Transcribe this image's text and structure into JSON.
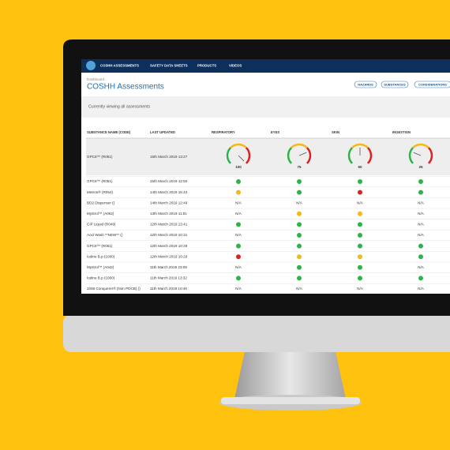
{
  "nav": {
    "items": [
      "COSHH ASSESSMENTS",
      "SAFETY DATA SHEETS",
      "PRODUCTS",
      "VIDEOS"
    ]
  },
  "header": {
    "breadcrumb": "Dashboard",
    "title": "COSHH Assessments",
    "buttons": [
      "HAZARDS",
      "SUBSTANCES",
      "CONSIDERATIONS"
    ]
  },
  "subheading": "Currently viewing all assessments",
  "table": {
    "columns": [
      "SUBSTANCE NAME (CODE)",
      "LAST UPDATED",
      "RESPIRATORY",
      "EYES",
      "SKIN",
      "INGESTION"
    ],
    "gauge_scale": [
      0,
      100
    ],
    "gauge_row": {
      "name": "GPC8™ (R051)",
      "date": "15th March 2019 13:27",
      "values": [
        100,
        75,
        50,
        25
      ]
    },
    "rows": [
      [
        "GPC8™ (R051)",
        "15th March 2019 12:50",
        "#2db34a",
        "#2db34a",
        "#2db34a",
        "#2db34a"
      ],
      [
        "Metron® (R054)",
        "14th March 2019 15:43",
        "#f2b918",
        "#2db34a",
        "#e02020",
        "#2db34a"
      ],
      [
        "BD2 Dispenser ()",
        "14th March 2019 12:49",
        "N/A",
        "N/A",
        "N/A",
        "N/A"
      ],
      [
        "Mystrol™ (A062)",
        "13th March 2019 11:51",
        "N/A",
        "#f2b918",
        "#f2b918",
        "N/A"
      ],
      [
        "CIP Liquid (R049)",
        "12th March 2019 13:41",
        "#2db34a",
        "#2db34a",
        "#2db34a",
        "N/A"
      ],
      [
        "Acid Wash **NEW** ()",
        "12th March 2019 10:31",
        "N/A",
        "#2db34a",
        "#2db34a",
        "N/A"
      ],
      [
        "GPC8™ (R051)",
        "12th March 2019 10:29",
        "#2db34a",
        "#2db34a",
        "#2db34a",
        "#2db34a"
      ],
      [
        "Iodine B.p (1000)",
        "12th March 2019 10:29",
        "#e02020",
        "#f2b918",
        "#f2b918",
        "#2db34a"
      ],
      [
        "Mystrol™ (A042)",
        "11th March 2019 23:08",
        "N/A",
        "#2db34a",
        "#2db34a",
        "N/A"
      ],
      [
        "Iodine B.p (1000)",
        "11th March 2019 13:32",
        "#2db34a",
        "#2db34a",
        "#2db34a",
        "#2db34a"
      ],
      [
        "1066 Conquerer® (Non PDCB) ()",
        "11th March 2019 10:46",
        "N/A",
        "N/A",
        "N/A",
        "N/A"
      ]
    ]
  }
}
